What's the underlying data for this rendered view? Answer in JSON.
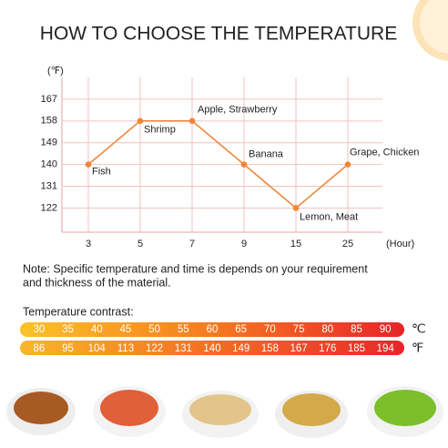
{
  "chart_data": {
    "type": "line",
    "title": "HOW TO CHOOSE THE TEMPERATURE",
    "y_label": "(℉)",
    "x_label": "(Hour)",
    "categories": [
      "3",
      "5",
      "7",
      "9",
      "15",
      "25"
    ],
    "values": [
      140,
      158,
      158,
      140,
      122,
      140
    ],
    "point_labels": [
      "Fish",
      "Shrimp",
      "Apple, Strawberry",
      "Banana",
      "Lemon, Meat",
      "Grape, Chicken"
    ],
    "color": "#f0863a",
    "ylim": [
      112,
      176
    ],
    "yticks": [
      122,
      131,
      140,
      149,
      158,
      167
    ],
    "grid": true
  },
  "note": [
    "Note: Specific temperature and time is depends on your requirement",
    "and thickness of the material."
  ],
  "contrast": {
    "title": "Temperature contrast:",
    "celsius": {
      "unit": "℃",
      "values": [
        30,
        35,
        40,
        45,
        50,
        55,
        60,
        65,
        70,
        75,
        80,
        85,
        90
      ]
    },
    "fahrenheit": {
      "unit": "℉",
      "values": [
        86,
        95,
        104,
        113,
        122,
        131,
        140,
        149,
        158,
        167,
        176,
        185,
        194
      ]
    }
  }
}
